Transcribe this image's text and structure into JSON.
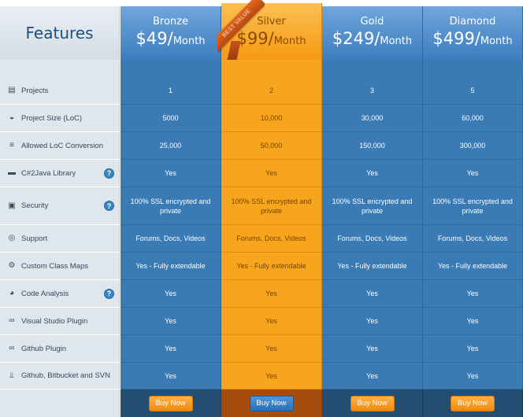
{
  "header": {
    "features_label": "Features",
    "plans": [
      {
        "name": "Bronze",
        "price": "$49/",
        "period": "Month"
      },
      {
        "name": "Silver",
        "price": "$99/",
        "period": "Month"
      },
      {
        "name": "Gold",
        "price": "$249/",
        "period": "Month"
      },
      {
        "name": "Diamond",
        "price": "$499/",
        "period": "Month"
      }
    ],
    "ribbon": "BEST VALUE"
  },
  "rows": [
    {
      "label": "Projects",
      "icon": "document-icon",
      "help": false,
      "values": [
        "1",
        "2",
        "3",
        "5"
      ]
    },
    {
      "label": "Project Size (LoC)",
      "icon": "gauge-icon",
      "help": false,
      "values": [
        "5000",
        "10,000",
        "30,000",
        "60,000"
      ]
    },
    {
      "label": "Allowed LoC Conversion",
      "icon": "lines-icon",
      "help": false,
      "values": [
        "25,000",
        "50,000",
        "150,000",
        "300,000"
      ]
    },
    {
      "label": "C#2Java Library",
      "icon": "folder-icon",
      "help": true,
      "values": [
        "Yes",
        "Yes",
        "Yes",
        "Yes"
      ]
    },
    {
      "label": "Security",
      "icon": "lock-icon",
      "help": true,
      "values": [
        "100% SSL encrypted and private",
        "100% SSL encrypted and private",
        "100% SSL encrypted and private",
        "100% SSL encrypted and private"
      ]
    },
    {
      "label": "Support",
      "icon": "lifebuoy-icon",
      "help": false,
      "values": [
        "Forums, Docs, Videos",
        "Forums, Docs, Videos",
        "Forums, Docs, Videos",
        "Forums, Docs, Videos"
      ]
    },
    {
      "label": "Custom Class Maps",
      "icon": "gear-icon",
      "help": false,
      "values": [
        "Yes - Fully extendable",
        "Yes - Fully extendable",
        "Yes - Fully extendable",
        "Yes - Fully extendable"
      ]
    },
    {
      "label": "Code Analysis",
      "icon": "pie-chart-icon",
      "help": true,
      "values": [
        "Yes",
        "Yes",
        "Yes",
        "Yes"
      ]
    },
    {
      "label": "Visual Studio Plugin",
      "icon": "link-icon",
      "help": false,
      "values": [
        "Yes",
        "Yes",
        "Yes",
        "Yes"
      ]
    },
    {
      "label": "Github Plugin",
      "icon": "link-icon",
      "help": false,
      "values": [
        "Yes",
        "Yes",
        "Yes",
        "Yes"
      ]
    },
    {
      "label": "Github, Bitbucket and SVN",
      "icon": "plug-icon",
      "help": false,
      "values": [
        "Yes",
        "Yes",
        "Yes",
        "Yes"
      ]
    }
  ],
  "help_glyph": "?",
  "buy_label": "Buy Now",
  "colors": {
    "plan_blue": "#3a7ab5",
    "plan_orange": "#f7a51c",
    "feature_bg": "#dfe6ec",
    "heading_text": "#1d4f7c"
  }
}
